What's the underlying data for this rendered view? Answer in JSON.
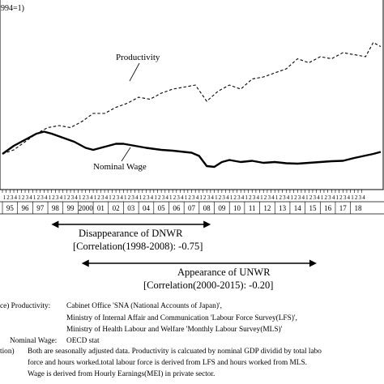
{
  "chart_data": {
    "type": "line",
    "title": "",
    "unit_label": "994=1)",
    "xlabel": "",
    "ylabel": "",
    "grid": false,
    "legend": "inline labels",
    "quarter_ticks": [
      "1",
      "2",
      "3",
      "4"
    ],
    "years": [
      "95",
      "96",
      "97",
      "98",
      "99",
      "2000",
      "01",
      "02",
      "03",
      "04",
      "05",
      "06",
      "07",
      "08",
      "09",
      "10",
      "11",
      "12",
      "13",
      "14",
      "15",
      "16",
      "17",
      "18"
    ],
    "x_unit": "quarter index (0 = 1995Q1)",
    "series": [
      {
        "name": "Productivity",
        "style": "dashed",
        "color": "#000000",
        "points": [
          [
            0,
            1.0
          ],
          [
            3,
            1.01
          ],
          [
            6,
            1.03
          ],
          [
            9,
            1.05
          ],
          [
            12,
            1.065
          ],
          [
            15,
            1.07
          ],
          [
            18,
            1.065
          ],
          [
            21,
            1.08
          ],
          [
            24,
            1.1
          ],
          [
            27,
            1.1
          ],
          [
            30,
            1.115
          ],
          [
            33,
            1.125
          ],
          [
            36,
            1.14
          ],
          [
            39,
            1.135
          ],
          [
            42,
            1.15
          ],
          [
            45,
            1.16
          ],
          [
            48,
            1.165
          ],
          [
            51,
            1.17
          ],
          [
            54,
            1.13
          ],
          [
            57,
            1.155
          ],
          [
            60,
            1.17
          ],
          [
            63,
            1.16
          ],
          [
            66,
            1.185
          ],
          [
            69,
            1.19
          ],
          [
            72,
            1.2
          ],
          [
            75,
            1.21
          ],
          [
            78,
            1.235
          ],
          [
            81,
            1.225
          ],
          [
            84,
            1.24
          ],
          [
            87,
            1.235
          ],
          [
            90,
            1.25
          ],
          [
            93,
            1.245
          ],
          [
            96,
            1.24
          ],
          [
            98,
            1.275
          ],
          [
            100,
            1.265
          ]
        ]
      },
      {
        "name": "Nominal Wage",
        "style": "solid",
        "color": "#000000",
        "points": [
          [
            0,
            1.0
          ],
          [
            3,
            1.02
          ],
          [
            6,
            1.035
          ],
          [
            9,
            1.05
          ],
          [
            11,
            1.055
          ],
          [
            13,
            1.05
          ],
          [
            16,
            1.04
          ],
          [
            19,
            1.03
          ],
          [
            22,
            1.015
          ],
          [
            24,
            1.01
          ],
          [
            26,
            1.015
          ],
          [
            28,
            1.02
          ],
          [
            30,
            1.025
          ],
          [
            32,
            1.025
          ],
          [
            35,
            1.02
          ],
          [
            38,
            1.015
          ],
          [
            42,
            1.01
          ],
          [
            45,
            1.008
          ],
          [
            48,
            1.005
          ],
          [
            50,
            1.003
          ],
          [
            52,
            0.995
          ],
          [
            54,
            0.97
          ],
          [
            56,
            0.968
          ],
          [
            58,
            0.98
          ],
          [
            60,
            0.985
          ],
          [
            63,
            0.98
          ],
          [
            66,
            0.983
          ],
          [
            69,
            0.978
          ],
          [
            72,
            0.98
          ],
          [
            75,
            0.977
          ],
          [
            78,
            0.976
          ],
          [
            81,
            0.978
          ],
          [
            84,
            0.98
          ],
          [
            87,
            0.982
          ],
          [
            90,
            0.983
          ],
          [
            93,
            0.99
          ],
          [
            96,
            0.996
          ],
          [
            98,
            1.0
          ],
          [
            100,
            1.005
          ]
        ]
      }
    ],
    "xlim": [
      0,
      101
    ],
    "ylim": [
      0.95,
      1.3
    ]
  },
  "annotations": {
    "dnwr_title": "Disappearance of DNWR",
    "dnwr_corr": "[Correlation(1998-2008): -0.75]",
    "unwr_title": "Appearance of UNWR",
    "unwr_corr": "[Correlation(2000-2015): -0.20]",
    "dnwr_range": [
      "98",
      "08"
    ],
    "unwr_range": [
      "2000",
      "15"
    ]
  },
  "notes": {
    "source_label": "ce) Productivity:",
    "source_lines": [
      "Cabinet Office 'SNA (National Accounts of Japan)',",
      "Ministry of Internal Affair and Communication 'Labour Force Survey(LFS)',",
      "Ministry of Health Labour and Welfare 'Monthly Labour Survey(MLS)'"
    ],
    "wage_label": "Nominal Wage:",
    "wage_source": "OECD stat",
    "tion_label": "tion)",
    "tion_lines": [
      "Both are seasonally adjusted data. Productivity is calcuated by nominal GDP dividid by total labo",
      "force and hours worked.total labour force is derived from LFS and hours worked from MLS.",
      "Wage is derived from Hourly Earnings(MEI) in private sector."
    ]
  }
}
